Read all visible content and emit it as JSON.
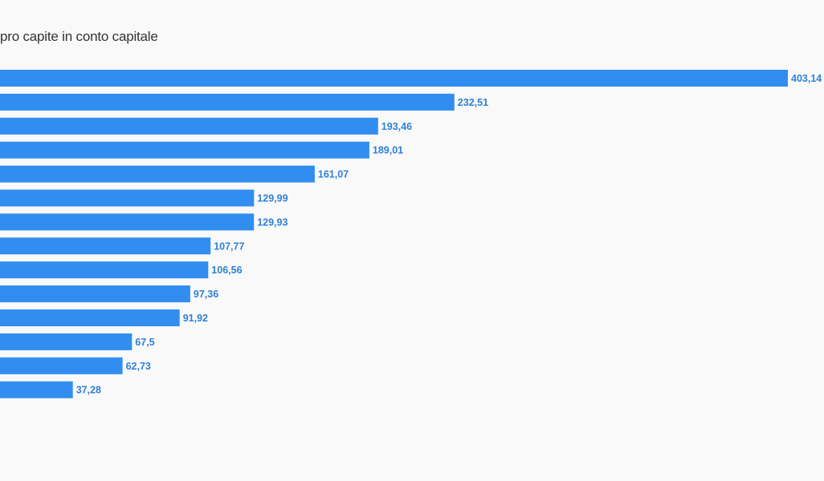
{
  "chart_data": {
    "type": "bar",
    "orientation": "horizontal",
    "title": "pro capite in conto capitale",
    "xlabel": "",
    "ylabel": "",
    "values": [
      403.14,
      232.51,
      193.46,
      189.01,
      161.07,
      129.99,
      129.93,
      107.77,
      106.56,
      97.36,
      91.92,
      67.5,
      62.73,
      37.28
    ],
    "value_labels": [
      "403,14",
      "232,51",
      "193,46",
      "189,01",
      "161,07",
      "129,99",
      "129,93",
      "107,77",
      "106,56",
      "97,36",
      "91,92",
      "67,5",
      "62,73",
      "37,28"
    ],
    "xlim": [
      0,
      403.14
    ],
    "grid": false,
    "legend": "none"
  },
  "colors": {
    "bar": "#318ef0",
    "label": "#2f80d9",
    "title": "#333333",
    "background": "#f9f9f9"
  }
}
